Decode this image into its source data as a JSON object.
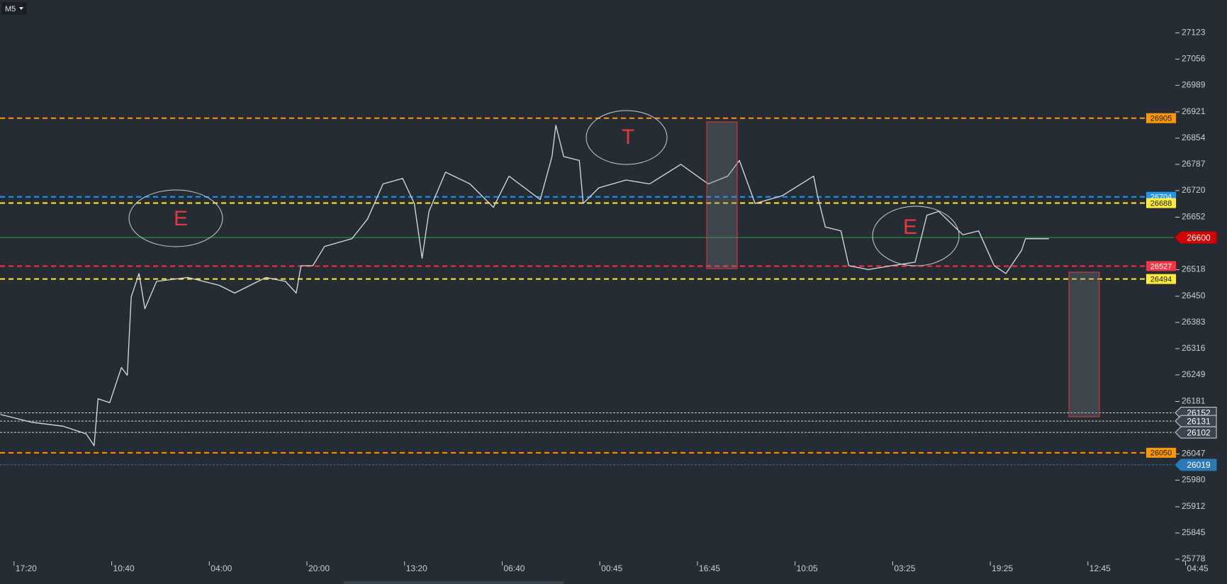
{
  "chart_data": {
    "type": "line",
    "timeframe": "M5",
    "annotations": [
      "E",
      "T",
      "E"
    ],
    "xlim": [
      -0.144,
      11.88
    ],
    "xticks": [
      {
        "value": 0,
        "label": "17:20"
      },
      {
        "value": 1,
        "label": "10:40"
      },
      {
        "value": 2,
        "label": "04:00"
      },
      {
        "value": 3,
        "label": "20:00"
      },
      {
        "value": 4,
        "label": "13:20"
      },
      {
        "value": 5,
        "label": "06:40"
      },
      {
        "value": 6,
        "label": "00:45"
      },
      {
        "value": 7,
        "label": "16:45"
      },
      {
        "value": 8,
        "label": "10:05"
      },
      {
        "value": 9,
        "label": "03:25"
      },
      {
        "value": 10,
        "label": "19:25"
      },
      {
        "value": 11,
        "label": "12:45"
      },
      {
        "value": 12,
        "label": "04:45"
      }
    ],
    "ylim": [
      25778,
      27207
    ],
    "yticks": [
      27123,
      27056,
      26989,
      26921,
      26854,
      26787,
      26720,
      26652,
      26518,
      26450,
      26383,
      26316,
      26249,
      26181,
      26047,
      25980,
      25912,
      25845,
      25778
    ],
    "series": [
      {
        "color": "#d8dde2",
        "x": [
          -0.14,
          0.18,
          0.5,
          0.74,
          0.82,
          0.86,
          0.98,
          1.1,
          1.16,
          1.2,
          1.28,
          1.34,
          1.46,
          1.78,
          2.1,
          2.26,
          2.58,
          2.78,
          2.89,
          2.94,
          3.06,
          3.18,
          3.46,
          3.62,
          3.78,
          3.98,
          4.1,
          4.18,
          4.25,
          4.42,
          4.67,
          4.91,
          5.07,
          5.39,
          5.51,
          5.55,
          5.63,
          5.79,
          5.83,
          5.99,
          6.27,
          6.51,
          6.83,
          7.11,
          7.31,
          7.43,
          7.59,
          7.87,
          8.19,
          8.23,
          8.31,
          8.47,
          8.55,
          8.75,
          8.99,
          9.23,
          9.35,
          9.47,
          9.72,
          9.88,
          10.04,
          10.16,
          10.32,
          10.36,
          10.6
        ],
        "values": [
          26148,
          26128,
          26118,
          26098,
          26068,
          26188,
          26178,
          26268,
          26248,
          26448,
          26508,
          26418,
          26488,
          26498,
          26478,
          26458,
          26498,
          26488,
          26458,
          26528,
          26528,
          26577,
          26597,
          26647,
          26737,
          26751,
          26687,
          26547,
          26667,
          26767,
          26737,
          26677,
          26757,
          26697,
          26807,
          26887,
          26807,
          26797,
          26687,
          26727,
          26747,
          26737,
          26787,
          26737,
          26757,
          26797,
          26687,
          26707,
          26757,
          26707,
          26627,
          26617,
          26528,
          26518,
          26528,
          26537,
          26657,
          26667,
          26607,
          26617,
          26528,
          26508,
          26567,
          26597,
          26597
        ]
      }
    ],
    "levels": [
      {
        "value": 26905,
        "color": "#ff9800",
        "style": "dashed"
      },
      {
        "value": 26704,
        "color": "#2196f3",
        "style": "dashed"
      },
      {
        "value": 26688,
        "color": "#ffeb3b",
        "style": "dashed"
      },
      {
        "value": 26600,
        "color": "#d50000",
        "style": "solid"
      },
      {
        "value": 26527,
        "color": "#f23645",
        "style": "dashed"
      },
      {
        "value": 26494,
        "color": "#ffeb3b",
        "style": "dashed"
      },
      {
        "value": 26152,
        "color": "#cfd8dc",
        "style": "dotted"
      },
      {
        "value": 26131,
        "color": "#cfd8dc",
        "style": "dotted"
      },
      {
        "value": 26102,
        "color": "#cfd8dc",
        "style": "dotted"
      },
      {
        "value": 26050,
        "color": "#ff9800",
        "style": "dashed"
      },
      {
        "value": 26019,
        "color": "#2a7ab8",
        "style": "dotted"
      }
    ]
  }
}
